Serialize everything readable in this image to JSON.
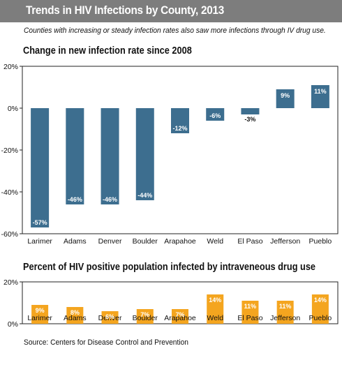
{
  "title": "Trends in HIV Infections by County, 2013",
  "subtitle": "Counties with increasing or steady infection rates also saw more infections through IV drug use.",
  "source": "Source: Centers for Disease Control and Prevention",
  "colors": {
    "title_bar": "#7d7d7d",
    "blue": "#3d6e8f",
    "orange": "#f4a51f"
  },
  "chart_data": [
    {
      "type": "bar",
      "title": "Change in new infection rate since 2008",
      "categories": [
        "Larimer",
        "Adams",
        "Denver",
        "Boulder",
        "Arapahoe",
        "Weld",
        "El Paso",
        "Jefferson",
        "Pueblo"
      ],
      "values": [
        -57,
        -46,
        -46,
        -44,
        -12,
        -6,
        -3,
        9,
        11
      ],
      "data_labels": [
        "-57%",
        "-46%",
        "-46%",
        "-44%",
        "-12%",
        "-6%",
        "-3%",
        "9%",
        "11%"
      ],
      "yticks": [
        20,
        0,
        -20,
        -40,
        -60
      ],
      "ytick_labels": [
        "20%",
        "0%",
        "-20%",
        "-40%",
        "-60%"
      ],
      "ylim": [
        -60,
        20
      ],
      "color": "#3d6e8f",
      "grid": false
    },
    {
      "type": "bar",
      "title": "Percent of HIV positive population infected by intraveneous drug use",
      "categories": [
        "Larimer",
        "Adams",
        "Denver",
        "Boulder",
        "Arapahoe",
        "Weld",
        "El Paso",
        "Jefferson",
        "Pueblo"
      ],
      "values": [
        9,
        8,
        6,
        7,
        7,
        14,
        11,
        11,
        14
      ],
      "data_labels": [
        "9%",
        "8%",
        "6%",
        "7%",
        "7%",
        "14%",
        "11%",
        "11%",
        "14%"
      ],
      "yticks": [
        20,
        0
      ],
      "ytick_labels": [
        "20%",
        "0%"
      ],
      "ylim": [
        0,
        20
      ],
      "color": "#f4a51f",
      "grid": false
    }
  ]
}
